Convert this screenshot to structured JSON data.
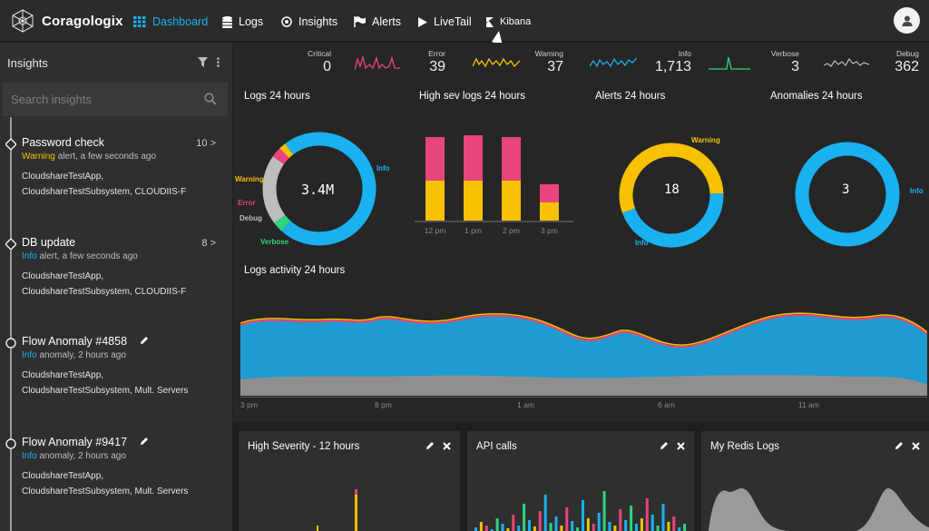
{
  "app": {
    "name": "Coragologix"
  },
  "nav": {
    "items": [
      {
        "label": "Dashboard",
        "icon": "grid-icon",
        "active": true
      },
      {
        "label": "Logs",
        "icon": "database-icon"
      },
      {
        "label": "Insights",
        "icon": "target-icon"
      },
      {
        "label": "Alerts",
        "icon": "flag-icon"
      },
      {
        "label": "LiveTail",
        "icon": "play-icon"
      },
      {
        "label": "Kibana",
        "icon": "kibana-icon"
      }
    ]
  },
  "sidebar": {
    "title": "Insights",
    "search_placeholder": "Search insights",
    "items": [
      {
        "title": "Password check",
        "level": "Warning",
        "rest": " alert, a few seconds ago",
        "count": "10 >",
        "line1": "CloudshareTestApp,",
        "line2": "CloudshareTestSubsystem, CLOUDIIS-F"
      },
      {
        "title": "DB update",
        "level": "Info",
        "rest": " alert, a few seconds ago",
        "count": "8 >",
        "line1": "CloudshareTestApp,",
        "line2": "CloudshareTestSubsystem, CLOUDIIS-F"
      },
      {
        "title": "Flow Anomaly #4858",
        "level": "Info",
        "rest": " anomaly, 2 hours ago",
        "count": "",
        "line1": "CloudshareTestApp,",
        "line2": "CloudshareTestSubsystem, Mult. Servers"
      },
      {
        "title": "Flow Anomaly #9417",
        "level": "Info",
        "rest": " anomaly, 2 hours ago",
        "count": "",
        "line1": "CloudshareTestApp,",
        "line2": "CloudshareTestSubsystem, Mult. Servers"
      }
    ]
  },
  "stats": [
    {
      "label": "Critical",
      "value": "0",
      "color": ""
    },
    {
      "label": "Error",
      "value": "39",
      "color": "#e8457a"
    },
    {
      "label": "Warning",
      "value": "37",
      "color": "#f5c100"
    },
    {
      "label": "Info",
      "value": "1,713",
      "color": "#19b1f0"
    },
    {
      "label": "Verbose",
      "value": "3",
      "color": "#2ed47a"
    },
    {
      "label": "Debug",
      "value": "362",
      "color": "#bdbdbd"
    }
  ],
  "panels": {
    "logs24": {
      "title": "Logs 24 hours",
      "center": "3.4M",
      "labels": {
        "warning": "Warning",
        "error": "Error",
        "debug": "Debug",
        "verbose": "Verbose",
        "info": "Info"
      },
      "slices": [
        {
          "name": "Info",
          "value": 70,
          "color": "#19b1f0"
        },
        {
          "name": "Verbose",
          "value": 3,
          "color": "#2ed47a"
        },
        {
          "name": "Debug",
          "value": 20,
          "color": "#bdbdbd"
        },
        {
          "name": "Error",
          "value": 3,
          "color": "#e8457a"
        },
        {
          "name": "Warning",
          "value": 2,
          "color": "#f5c100"
        },
        {
          "name": "Info",
          "value": 2,
          "color": "#19b1f0"
        }
      ]
    },
    "highsev": {
      "title": "High sev logs 24 hours",
      "categories": [
        "12 pm",
        "1 pm",
        "2 pm",
        "3 pm"
      ],
      "warning": [
        44,
        44,
        44,
        20
      ],
      "error": [
        48,
        50,
        48,
        20
      ],
      "colors": {
        "warning": "#f5c100",
        "error": "#e8457a"
      }
    },
    "alerts24": {
      "title": "Alerts 24 hours",
      "center": "18",
      "labels": {
        "warning": "Warning",
        "info": "Info"
      },
      "slices": [
        {
          "name": "Warning",
          "value": 55,
          "color": "#f5c100"
        },
        {
          "name": "Info",
          "value": 45,
          "color": "#19b1f0"
        }
      ]
    },
    "anomalies24": {
      "title": "Anomalies 24 hours",
      "center": "3",
      "labels": {
        "info": "Info"
      },
      "slices": [
        {
          "name": "Info",
          "value": 100,
          "color": "#19b1f0"
        }
      ]
    },
    "activity": {
      "title": "Logs activity 24 hours",
      "ticks": [
        "3 pm",
        "8 pm",
        "1 am",
        "6 am",
        "11 am"
      ]
    }
  },
  "bottom_cards": [
    {
      "title": "High Severity - 12 hours"
    },
    {
      "title": "API calls"
    },
    {
      "title": "My Redis Logs"
    }
  ]
}
